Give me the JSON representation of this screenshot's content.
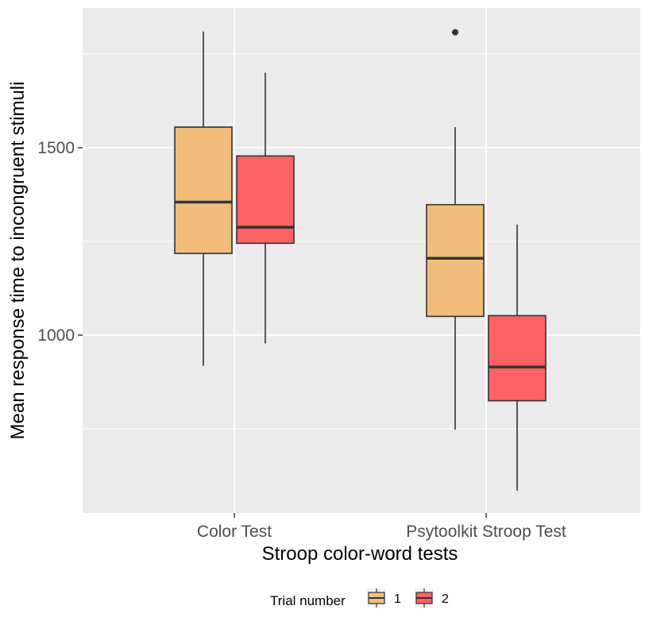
{
  "chart_data": {
    "type": "boxplot",
    "xlabel": "Stroop color-word tests",
    "ylabel": "Mean response time to incongruent stimuli",
    "categories": [
      "Color Test",
      "Psytoolkit Stroop Test"
    ],
    "y_ticks": [
      1000,
      1500
    ],
    "y_minor_grid": [
      750,
      1250,
      1750
    ],
    "ylim": [
      550,
      1900
    ],
    "grid": true,
    "legend": {
      "title": "Trial number",
      "position": "bottom",
      "entries": [
        "1",
        "2"
      ]
    },
    "series": [
      {
        "name": "1",
        "color": "#f2bd7b",
        "boxes": [
          {
            "category": "Color Test",
            "min": 918,
            "q1": 1218,
            "median": 1355,
            "q3": 1555,
            "max": 1810,
            "outliers": []
          },
          {
            "category": "Psytoolkit Stroop Test",
            "min": 748,
            "q1": 1050,
            "median": 1205,
            "q3": 1348,
            "max": 1555,
            "outliers": [
              1808
            ]
          }
        ]
      },
      {
        "name": "2",
        "color": "#fc6265",
        "boxes": [
          {
            "category": "Color Test",
            "min": 978,
            "q1": 1245,
            "median": 1288,
            "q3": 1478,
            "max": 1700,
            "outliers": []
          },
          {
            "category": "Psytoolkit Stroop Test",
            "min": 585,
            "q1": 825,
            "median": 915,
            "q3": 1052,
            "max": 1295,
            "outliers": []
          }
        ]
      }
    ]
  }
}
